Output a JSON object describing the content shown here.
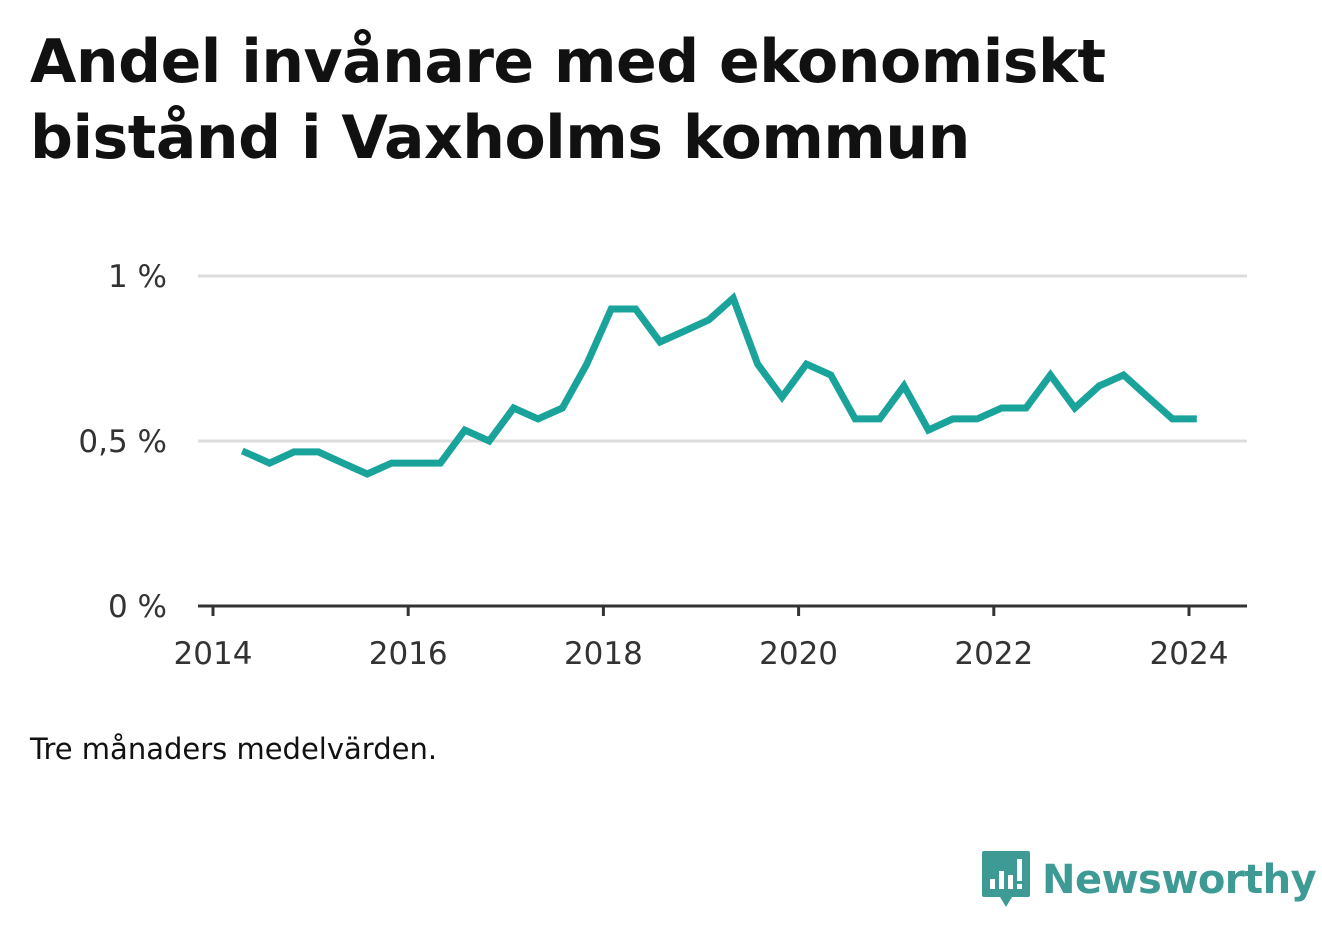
{
  "title": "Andel invånare med ekonomiskt bistånd i Vaxholms kommun",
  "note": "Tre månaders medelvärden.",
  "brand": {
    "name": "Newsworthy",
    "logo": "newsworthy-logo-icon",
    "color": "#3e9a94"
  },
  "colors": {
    "line": "#1aa39a",
    "grid": "#dddddd",
    "axis": "#333333"
  },
  "chart_data": {
    "type": "line",
    "title": "Andel invånare med ekonomiskt bistånd i Vaxholms kommun",
    "xlabel": "",
    "ylabel": "",
    "xlim": [
      2014,
      2024.5
    ],
    "ylim": [
      0,
      1
    ],
    "x_ticks": [
      2014,
      2016,
      2018,
      2020,
      2022,
      2024
    ],
    "y_ticks": [
      {
        "value": 0,
        "label": "0 %"
      },
      {
        "value": 0.5,
        "label": "0,5 %"
      },
      {
        "value": 1,
        "label": "1 %"
      }
    ],
    "grid": true,
    "legend": "none",
    "series": [
      {
        "x": [
          2014.3,
          2014.58,
          2014.83,
          2015.08,
          2015.33,
          2015.58,
          2015.83,
          2016.08,
          2016.33,
          2016.58,
          2016.83,
          2017.08,
          2017.33,
          2017.58,
          2017.83,
          2018.08,
          2018.33,
          2018.58,
          2018.83,
          2019.08,
          2019.33,
          2019.58,
          2019.83,
          2020.08,
          2020.33,
          2020.58,
          2020.83,
          2021.08,
          2021.33,
          2021.58,
          2021.83,
          2022.08,
          2022.33,
          2022.58,
          2022.83,
          2023.08,
          2023.33,
          2023.58,
          2023.83,
          2024.08
        ],
        "values": [
          0.47,
          0.433,
          0.467,
          0.467,
          0.433,
          0.4,
          0.433,
          0.433,
          0.433,
          0.533,
          0.5,
          0.6,
          0.567,
          0.6,
          0.733,
          0.9,
          0.9,
          0.8,
          0.833,
          0.867,
          0.933,
          0.733,
          0.633,
          0.733,
          0.7,
          0.567,
          0.567,
          0.667,
          0.533,
          0.567,
          0.567,
          0.6,
          0.6,
          0.7,
          0.6,
          0.667,
          0.7,
          0.633,
          0.567,
          0.567
        ]
      }
    ]
  }
}
